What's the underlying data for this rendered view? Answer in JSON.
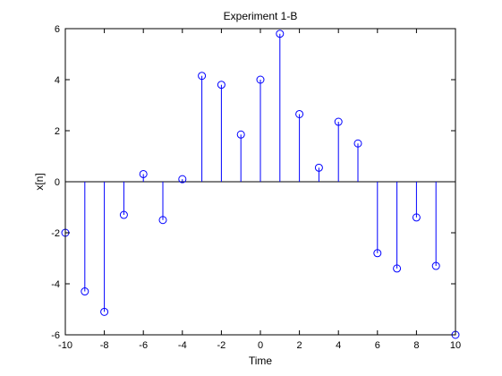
{
  "chart_data": {
    "type": "stem",
    "title": "Experiment 1-B",
    "xlabel": "Time",
    "ylabel": "x[n]",
    "xlim": [
      -10,
      10
    ],
    "ylim": [
      -6,
      6
    ],
    "x_ticks": [
      -10,
      -8,
      -6,
      -4,
      -2,
      0,
      2,
      4,
      6,
      8,
      10
    ],
    "y_ticks": [
      -6,
      -4,
      -2,
      0,
      2,
      4,
      6
    ],
    "x_tick_labels": [
      "-10",
      "-8",
      "-6",
      "-4",
      "-2",
      "0",
      "2",
      "4",
      "6",
      "8",
      "10"
    ],
    "y_tick_labels": [
      "-6",
      "-4",
      "-2",
      "0",
      "2",
      "4",
      "6"
    ],
    "grid": false,
    "series": [
      {
        "color": "#0000ff",
        "marker": "circle",
        "x": [
          -10,
          -9,
          -8,
          -7,
          -6,
          -5,
          -4,
          -3,
          -2,
          -1,
          0,
          1,
          2,
          3,
          4,
          5,
          6,
          7,
          8,
          9,
          10
        ],
        "values": [
          -2.0,
          -4.3,
          -5.1,
          -1.3,
          0.3,
          -1.5,
          0.1,
          4.15,
          3.8,
          1.85,
          4.0,
          5.8,
          2.65,
          0.55,
          2.35,
          1.5,
          -2.8,
          -3.4,
          -1.4,
          -3.3,
          -6.0
        ]
      }
    ]
  }
}
